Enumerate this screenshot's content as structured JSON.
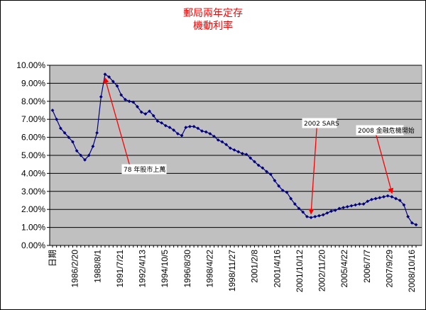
{
  "chart_data": {
    "type": "line",
    "title": "郵局兩年定存",
    "subtitle": "機動利率",
    "xlabel": "",
    "ylabel": "",
    "ylim": [
      0,
      10
    ],
    "yticks": [
      "0.00%",
      "1.00%",
      "2.00%",
      "3.00%",
      "4.00%",
      "5.00%",
      "6.00%",
      "7.00%",
      "8.00%",
      "9.00%",
      "10.00%"
    ],
    "xtick_labels": [
      "日期",
      "1986/2/20",
      "1988/8/1",
      "1991/7/21",
      "1992/4/13",
      "1994/10/5",
      "1996/8/30",
      "1998/4/22",
      "1998/11/27",
      "2001/2/8",
      "2001/4/16",
      "2001/10/12",
      "2002/11/20",
      "2005/4/22",
      "2006/7/7",
      "2007/9/29",
      "2008/10/16"
    ],
    "grid": "horizontal",
    "legend": "none",
    "colors": {
      "plot_bg": "#c0c0c0",
      "line": "#000080",
      "annotation_arrow": "#ff0000",
      "title": "#ff0000"
    },
    "series": [
      {
        "values": [
          7.5,
          7.0,
          6.5,
          6.25,
          6.0,
          5.75,
          5.25,
          5.0,
          4.75,
          5.0,
          5.5,
          6.25,
          8.25,
          9.5,
          9.35,
          9.1,
          8.85,
          8.35,
          8.1,
          8.0,
          7.95,
          7.7,
          7.4,
          7.3,
          7.45,
          7.2,
          6.9,
          6.8,
          6.65,
          6.55,
          6.4,
          6.2,
          6.1,
          6.55,
          6.6,
          6.6,
          6.5,
          6.35,
          6.3,
          6.2,
          6.05,
          5.85,
          5.75,
          5.6,
          5.4,
          5.3,
          5.2,
          5.1,
          5.05,
          4.85,
          4.65,
          4.45,
          4.3,
          4.1,
          3.95,
          3.6,
          3.3,
          3.05,
          2.95,
          2.6,
          2.3,
          2.05,
          1.85,
          1.6,
          1.55,
          1.6,
          1.65,
          1.7,
          1.8,
          1.9,
          1.95,
          2.05,
          2.1,
          2.15,
          2.2,
          2.25,
          2.3,
          2.3,
          2.45,
          2.55,
          2.6,
          2.65,
          2.7,
          2.75,
          2.7,
          2.6,
          2.5,
          2.25,
          1.6,
          1.25,
          1.15
        ]
      }
    ],
    "annotations": [
      {
        "text": "78 年股市上萬",
        "x_index": 13,
        "y": 9.5
      },
      {
        "text": "2002 SARS",
        "x_index": 64,
        "y": 1.55
      },
      {
        "text": "2008 金融危機開始",
        "x_index": 84,
        "y": 2.7
      }
    ]
  }
}
